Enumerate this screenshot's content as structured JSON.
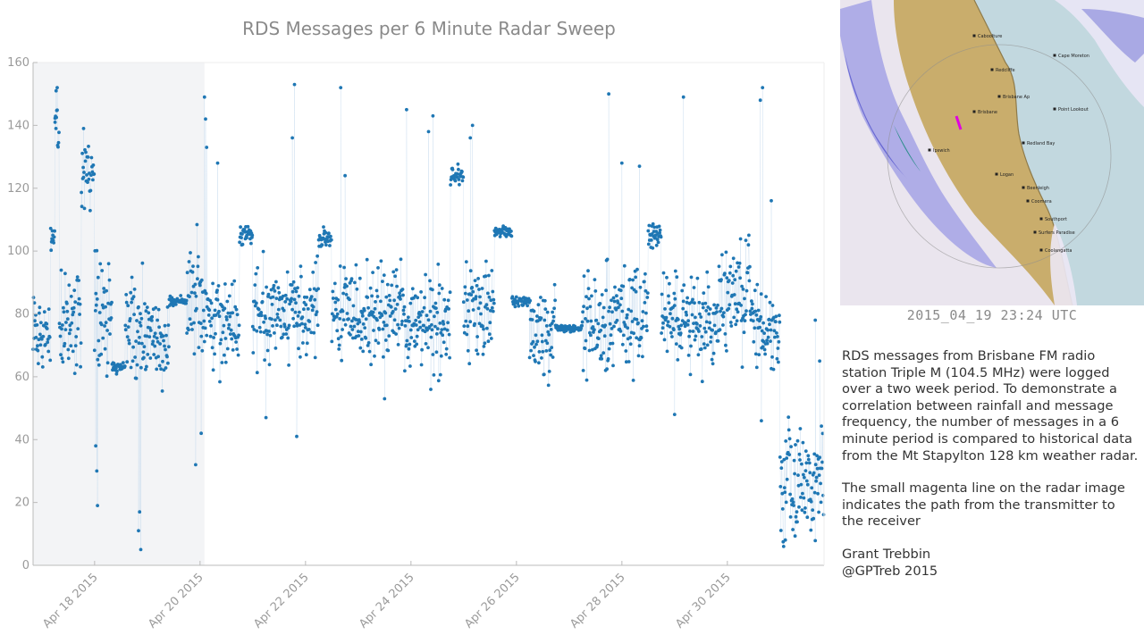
{
  "chart_data": {
    "type": "scatter",
    "title": "RDS Messages per 6 Minute Radar Sweep",
    "xlabel": "",
    "ylabel": "",
    "xlim": [
      "2015-04-16T20:00",
      "2015-05-01T20:00"
    ],
    "ylim": [
      0,
      160
    ],
    "yticks": [
      0,
      20,
      40,
      60,
      80,
      100,
      120,
      140,
      160
    ],
    "xticks": [
      {
        "date": "2015-04-18",
        "label": "Apr 18 2015"
      },
      {
        "date": "2015-04-20",
        "label": "Apr 20 2015"
      },
      {
        "date": "2015-04-22",
        "label": "Apr 22 2015"
      },
      {
        "date": "2015-04-24",
        "label": "Apr 24 2015"
      },
      {
        "date": "2015-04-26",
        "label": "Apr 26 2015"
      },
      {
        "date": "2015-04-28",
        "label": "Apr 28 2015"
      },
      {
        "date": "2015-04-30",
        "label": "Apr 30 2015"
      }
    ],
    "shaded_span": [
      "2015-04-16T20:00",
      "2015-04-20T02:00"
    ],
    "point_color": "#1f77b4",
    "shade_color": "#f3f4f6",
    "grid": false,
    "segments": [
      {
        "start": "2015-04-16T20:00",
        "end": "2015-04-17T04:00",
        "low": 58,
        "high": 88
      },
      {
        "start": "2015-04-17T04:00",
        "end": "2015-04-17T06:00",
        "low": 100,
        "high": 110
      },
      {
        "start": "2015-04-17T06:00",
        "end": "2015-04-17T08:00",
        "low": 130,
        "high": 152
      },
      {
        "start": "2015-04-17T08:00",
        "end": "2015-04-17T18:00",
        "low": 60,
        "high": 97
      },
      {
        "start": "2015-04-17T18:00",
        "end": "2015-04-18T00:00",
        "low": 110,
        "high": 138
      },
      {
        "start": "2015-04-18T00:00",
        "end": "2015-04-18T08:00",
        "low": 55,
        "high": 105
      },
      {
        "start": "2015-04-18T08:00",
        "end": "2015-04-18T14:00",
        "low": 61,
        "high": 65
      },
      {
        "start": "2015-04-18T14:00",
        "end": "2015-04-18T22:00",
        "low": 56,
        "high": 96
      },
      {
        "start": "2015-04-18T22:00",
        "end": "2015-04-19T10:00",
        "low": 55,
        "high": 85
      },
      {
        "start": "2015-04-19T10:00",
        "end": "2015-04-19T18:00",
        "low": 82,
        "high": 86
      },
      {
        "start": "2015-04-19T18:00",
        "end": "2015-04-20T02:00",
        "low": 60,
        "high": 108
      },
      {
        "start": "2015-04-20T02:00",
        "end": "2015-04-20T18:00",
        "low": 60,
        "high": 95
      },
      {
        "start": "2015-04-20T18:00",
        "end": "2015-04-21T00:00",
        "low": 100,
        "high": 110
      },
      {
        "start": "2015-04-21T00:00",
        "end": "2015-04-22T06:00",
        "low": 60,
        "high": 100
      },
      {
        "start": "2015-04-22T06:00",
        "end": "2015-04-22T12:00",
        "low": 100,
        "high": 108
      },
      {
        "start": "2015-04-22T12:00",
        "end": "2015-04-23T20:00",
        "low": 60,
        "high": 100
      },
      {
        "start": "2015-04-23T20:00",
        "end": "2015-04-24T18:00",
        "low": 58,
        "high": 98
      },
      {
        "start": "2015-04-24T18:00",
        "end": "2015-04-25T00:00",
        "low": 120,
        "high": 128
      },
      {
        "start": "2015-04-25T00:00",
        "end": "2015-04-25T14:00",
        "low": 60,
        "high": 100
      },
      {
        "start": "2015-04-25T14:00",
        "end": "2015-04-25T22:00",
        "low": 104,
        "high": 108
      },
      {
        "start": "2015-04-25T22:00",
        "end": "2015-04-26T06:00",
        "low": 82,
        "high": 86
      },
      {
        "start": "2015-04-26T06:00",
        "end": "2015-04-26T18:00",
        "low": 55,
        "high": 90
      },
      {
        "start": "2015-04-26T18:00",
        "end": "2015-04-27T06:00",
        "low": 74,
        "high": 77
      },
      {
        "start": "2015-04-27T06:00",
        "end": "2015-04-28T12:00",
        "low": 56,
        "high": 100
      },
      {
        "start": "2015-04-28T12:00",
        "end": "2015-04-28T18:00",
        "low": 100,
        "high": 110
      },
      {
        "start": "2015-04-28T18:00",
        "end": "2015-04-29T20:00",
        "low": 58,
        "high": 98
      },
      {
        "start": "2015-04-29T20:00",
        "end": "2015-04-30T12:00",
        "low": 60,
        "high": 110
      },
      {
        "start": "2015-04-30T12:00",
        "end": "2015-05-01T00:00",
        "low": 58,
        "high": 90
      },
      {
        "start": "2015-05-01T00:00",
        "end": "2015-05-01T20:00",
        "low": 2,
        "high": 55
      }
    ],
    "outliers": [
      {
        "x": "2015-04-17T07:00",
        "y": 152
      },
      {
        "x": "2015-04-17T06:30",
        "y": 151
      },
      {
        "x": "2015-04-17T06:00",
        "y": 141
      },
      {
        "x": "2015-04-17T19:00",
        "y": 139
      },
      {
        "x": "2015-04-18T00:30",
        "y": 38
      },
      {
        "x": "2015-04-18T01:00",
        "y": 30
      },
      {
        "x": "2015-04-18T01:20",
        "y": 19
      },
      {
        "x": "2015-04-18T20:30",
        "y": 17
      },
      {
        "x": "2015-04-18T20:00",
        "y": 11
      },
      {
        "x": "2015-04-18T21:00",
        "y": 5
      },
      {
        "x": "2015-04-19T22:00",
        "y": 32
      },
      {
        "x": "2015-04-20T00:30",
        "y": 42
      },
      {
        "x": "2015-04-20T02:00",
        "y": 149
      },
      {
        "x": "2015-04-20T02:30",
        "y": 142
      },
      {
        "x": "2015-04-20T03:00",
        "y": 133
      },
      {
        "x": "2015-04-20T08:00",
        "y": 128
      },
      {
        "x": "2015-04-21T19:00",
        "y": 153
      },
      {
        "x": "2015-04-21T18:00",
        "y": 136
      },
      {
        "x": "2015-04-21T20:00",
        "y": 41
      },
      {
        "x": "2015-04-21T06:00",
        "y": 47
      },
      {
        "x": "2015-04-22T16:00",
        "y": 152
      },
      {
        "x": "2015-04-22T18:00",
        "y": 124
      },
      {
        "x": "2015-04-23T12:00",
        "y": 53
      },
      {
        "x": "2015-04-23T22:00",
        "y": 145
      },
      {
        "x": "2015-04-24T10:00",
        "y": 143
      },
      {
        "x": "2015-04-24T08:00",
        "y": 138
      },
      {
        "x": "2015-04-24T09:00",
        "y": 56
      },
      {
        "x": "2015-04-25T04:00",
        "y": 140
      },
      {
        "x": "2015-04-25T03:00",
        "y": 136
      },
      {
        "x": "2015-04-27T18:00",
        "y": 150
      },
      {
        "x": "2015-04-28T00:00",
        "y": 128
      },
      {
        "x": "2015-04-28T08:00",
        "y": 127
      },
      {
        "x": "2015-04-29T04:00",
        "y": 149
      },
      {
        "x": "2015-04-29T00:00",
        "y": 48
      },
      {
        "x": "2015-04-30T16:00",
        "y": 152
      },
      {
        "x": "2015-04-30T15:00",
        "y": 148
      },
      {
        "x": "2015-04-30T15:30",
        "y": 46
      },
      {
        "x": "2015-04-30T20:00",
        "y": 116
      },
      {
        "x": "2015-05-01T16:00",
        "y": 78
      },
      {
        "x": "2015-05-01T18:00",
        "y": 65
      }
    ]
  },
  "radar": {
    "timestamp": "2015_04_19  23:24  UTC",
    "places": [
      "Caboolture",
      "Redcliffe",
      "Brisbane Ap",
      "Brisbane",
      "Point Lookout",
      "Ipswich",
      "Logan",
      "Beenleigh",
      "Coomera",
      "Southport",
      "Surfers Paradise",
      "Coolangatta",
      "Cape Moreton",
      "Redland Bay"
    ]
  },
  "description": {
    "paragraph1": "RDS messages from Brisbane FM radio station Triple M (104.5 MHz) were logged over a two week period.  To demonstrate a correlation between rainfall and message frequency, the number of messages in a 6 minute period is compared to historical data from the Mt Stapylton 128 km weather radar.",
    "paragraph2": "The small magenta line on the radar image indicates the path from the transmitter to the receiver",
    "author": "Grant Trebbin",
    "handle": "@GPTreb 2015"
  }
}
